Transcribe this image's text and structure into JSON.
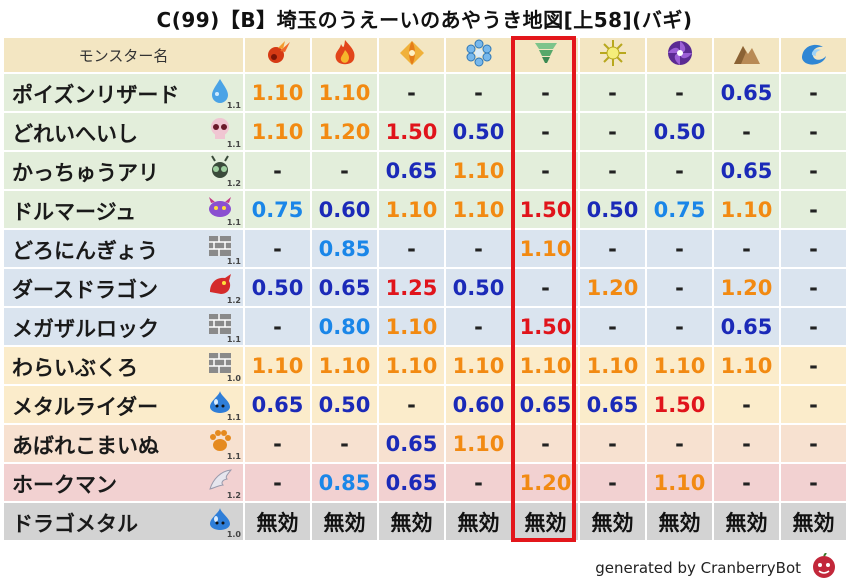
{
  "title": "C(99)【B】埼玉のうえーいのあやうき地図[上58](バギ)",
  "header": {
    "name_label": "モンスター名",
    "elements": [
      "fire-1",
      "fire-2",
      "earth",
      "ice",
      "wind",
      "light",
      "dark",
      "earth-rock",
      "water"
    ]
  },
  "rows": [
    {
      "name": "ポイズンリザード",
      "icon": "drop-icon",
      "level": "1.1",
      "bg": "green",
      "values": [
        {
          "t": "1.10",
          "c": "orange"
        },
        {
          "t": "1.10",
          "c": "orange"
        },
        {
          "t": "-",
          "c": "dash"
        },
        {
          "t": "-",
          "c": "dash"
        },
        {
          "t": "-",
          "c": "dash"
        },
        {
          "t": "-",
          "c": "dash"
        },
        {
          "t": "-",
          "c": "dash"
        },
        {
          "t": "0.65",
          "c": "blue"
        },
        {
          "t": "-",
          "c": "dash"
        }
      ]
    },
    {
      "name": "どれいへいし",
      "icon": "skull-icon",
      "level": "1.1",
      "bg": "green",
      "values": [
        {
          "t": "1.10",
          "c": "orange"
        },
        {
          "t": "1.20",
          "c": "orange"
        },
        {
          "t": "1.50",
          "c": "red"
        },
        {
          "t": "0.50",
          "c": "blue"
        },
        {
          "t": "-",
          "c": "dash"
        },
        {
          "t": "-",
          "c": "dash"
        },
        {
          "t": "0.50",
          "c": "blue"
        },
        {
          "t": "-",
          "c": "dash"
        },
        {
          "t": "-",
          "c": "dash"
        }
      ]
    },
    {
      "name": "かっちゅうアリ",
      "icon": "bug-icon",
      "level": "1.2",
      "bg": "green",
      "values": [
        {
          "t": "-",
          "c": "dash"
        },
        {
          "t": "-",
          "c": "dash"
        },
        {
          "t": "0.65",
          "c": "blue"
        },
        {
          "t": "1.10",
          "c": "orange"
        },
        {
          "t": "-",
          "c": "dash"
        },
        {
          "t": "-",
          "c": "dash"
        },
        {
          "t": "-",
          "c": "dash"
        },
        {
          "t": "0.65",
          "c": "blue"
        },
        {
          "t": "-",
          "c": "dash"
        }
      ]
    },
    {
      "name": "ドルマージュ",
      "icon": "demon-icon",
      "level": "1.1",
      "bg": "green",
      "values": [
        {
          "t": "0.75",
          "c": "light"
        },
        {
          "t": "0.60",
          "c": "blue"
        },
        {
          "t": "1.10",
          "c": "orange"
        },
        {
          "t": "1.10",
          "c": "orange"
        },
        {
          "t": "1.50",
          "c": "red"
        },
        {
          "t": "0.50",
          "c": "blue"
        },
        {
          "t": "0.75",
          "c": "light"
        },
        {
          "t": "1.10",
          "c": "orange"
        },
        {
          "t": "-",
          "c": "dash"
        }
      ]
    },
    {
      "name": "どろにんぎょう",
      "icon": "brick-icon",
      "level": "1.1",
      "bg": "blue",
      "values": [
        {
          "t": "-",
          "c": "dash"
        },
        {
          "t": "0.85",
          "c": "light"
        },
        {
          "t": "-",
          "c": "dash"
        },
        {
          "t": "-",
          "c": "dash"
        },
        {
          "t": "1.10",
          "c": "orange"
        },
        {
          "t": "-",
          "c": "dash"
        },
        {
          "t": "-",
          "c": "dash"
        },
        {
          "t": "-",
          "c": "dash"
        },
        {
          "t": "-",
          "c": "dash"
        }
      ]
    },
    {
      "name": "ダースドラゴン",
      "icon": "dragon-icon",
      "level": "1.2",
      "bg": "blue",
      "values": [
        {
          "t": "0.50",
          "c": "blue"
        },
        {
          "t": "0.65",
          "c": "blue"
        },
        {
          "t": "1.25",
          "c": "red"
        },
        {
          "t": "0.50",
          "c": "blue"
        },
        {
          "t": "-",
          "c": "dash"
        },
        {
          "t": "1.20",
          "c": "orange"
        },
        {
          "t": "-",
          "c": "dash"
        },
        {
          "t": "1.20",
          "c": "orange"
        },
        {
          "t": "-",
          "c": "dash"
        }
      ]
    },
    {
      "name": "メガザルロック",
      "icon": "brick-icon",
      "level": "1.1",
      "bg": "blue",
      "values": [
        {
          "t": "-",
          "c": "dash"
        },
        {
          "t": "0.80",
          "c": "light"
        },
        {
          "t": "1.10",
          "c": "orange"
        },
        {
          "t": "-",
          "c": "dash"
        },
        {
          "t": "1.50",
          "c": "red"
        },
        {
          "t": "-",
          "c": "dash"
        },
        {
          "t": "-",
          "c": "dash"
        },
        {
          "t": "0.65",
          "c": "blue"
        },
        {
          "t": "-",
          "c": "dash"
        }
      ]
    },
    {
      "name": "わらいぶくろ",
      "icon": "brick-icon",
      "level": "1.0",
      "bg": "yellow",
      "values": [
        {
          "t": "1.10",
          "c": "orange"
        },
        {
          "t": "1.10",
          "c": "orange"
        },
        {
          "t": "1.10",
          "c": "orange"
        },
        {
          "t": "1.10",
          "c": "orange"
        },
        {
          "t": "1.10",
          "c": "orange"
        },
        {
          "t": "1.10",
          "c": "orange"
        },
        {
          "t": "1.10",
          "c": "orange"
        },
        {
          "t": "1.10",
          "c": "orange"
        },
        {
          "t": "-",
          "c": "dash"
        }
      ]
    },
    {
      "name": "メタルライダー",
      "icon": "slime-icon",
      "level": "1.1",
      "bg": "yellow",
      "values": [
        {
          "t": "0.65",
          "c": "blue"
        },
        {
          "t": "0.50",
          "c": "blue"
        },
        {
          "t": "-",
          "c": "dash"
        },
        {
          "t": "0.60",
          "c": "blue"
        },
        {
          "t": "0.65",
          "c": "blue"
        },
        {
          "t": "0.65",
          "c": "blue"
        },
        {
          "t": "1.50",
          "c": "red"
        },
        {
          "t": "-",
          "c": "dash"
        },
        {
          "t": "-",
          "c": "dash"
        }
      ]
    },
    {
      "name": "あばれこまいぬ",
      "icon": "paw-icon",
      "level": "1.1",
      "bg": "peach",
      "values": [
        {
          "t": "-",
          "c": "dash"
        },
        {
          "t": "-",
          "c": "dash"
        },
        {
          "t": "0.65",
          "c": "blue"
        },
        {
          "t": "1.10",
          "c": "orange"
        },
        {
          "t": "-",
          "c": "dash"
        },
        {
          "t": "-",
          "c": "dash"
        },
        {
          "t": "-",
          "c": "dash"
        },
        {
          "t": "-",
          "c": "dash"
        },
        {
          "t": "-",
          "c": "dash"
        }
      ]
    },
    {
      "name": "ホークマン",
      "icon": "wing-icon",
      "level": "1.2",
      "bg": "pink",
      "values": [
        {
          "t": "-",
          "c": "dash"
        },
        {
          "t": "0.85",
          "c": "light"
        },
        {
          "t": "0.65",
          "c": "blue"
        },
        {
          "t": "-",
          "c": "dash"
        },
        {
          "t": "1.20",
          "c": "orange"
        },
        {
          "t": "-",
          "c": "dash"
        },
        {
          "t": "1.10",
          "c": "orange"
        },
        {
          "t": "-",
          "c": "dash"
        },
        {
          "t": "-",
          "c": "dash"
        }
      ]
    },
    {
      "name": "ドラゴメタル",
      "icon": "slime-icon",
      "level": "1.0",
      "bg": "gray",
      "values": [
        {
          "t": "無効",
          "c": "mk"
        },
        {
          "t": "無効",
          "c": "mk"
        },
        {
          "t": "無効",
          "c": "mk"
        },
        {
          "t": "無効",
          "c": "mk"
        },
        {
          "t": "無効",
          "c": "mk"
        },
        {
          "t": "無効",
          "c": "mk"
        },
        {
          "t": "無効",
          "c": "mk"
        },
        {
          "t": "無効",
          "c": "mk"
        },
        {
          "t": "無効",
          "c": "mk"
        }
      ]
    }
  ],
  "footer": {
    "text": "generated by CranberryBot"
  },
  "colors": {
    "orange": "#f28a12",
    "blue": "#1b2ab8",
    "red": "#e0141b",
    "light": "#1a86e8",
    "highlight": "#e3161b"
  }
}
